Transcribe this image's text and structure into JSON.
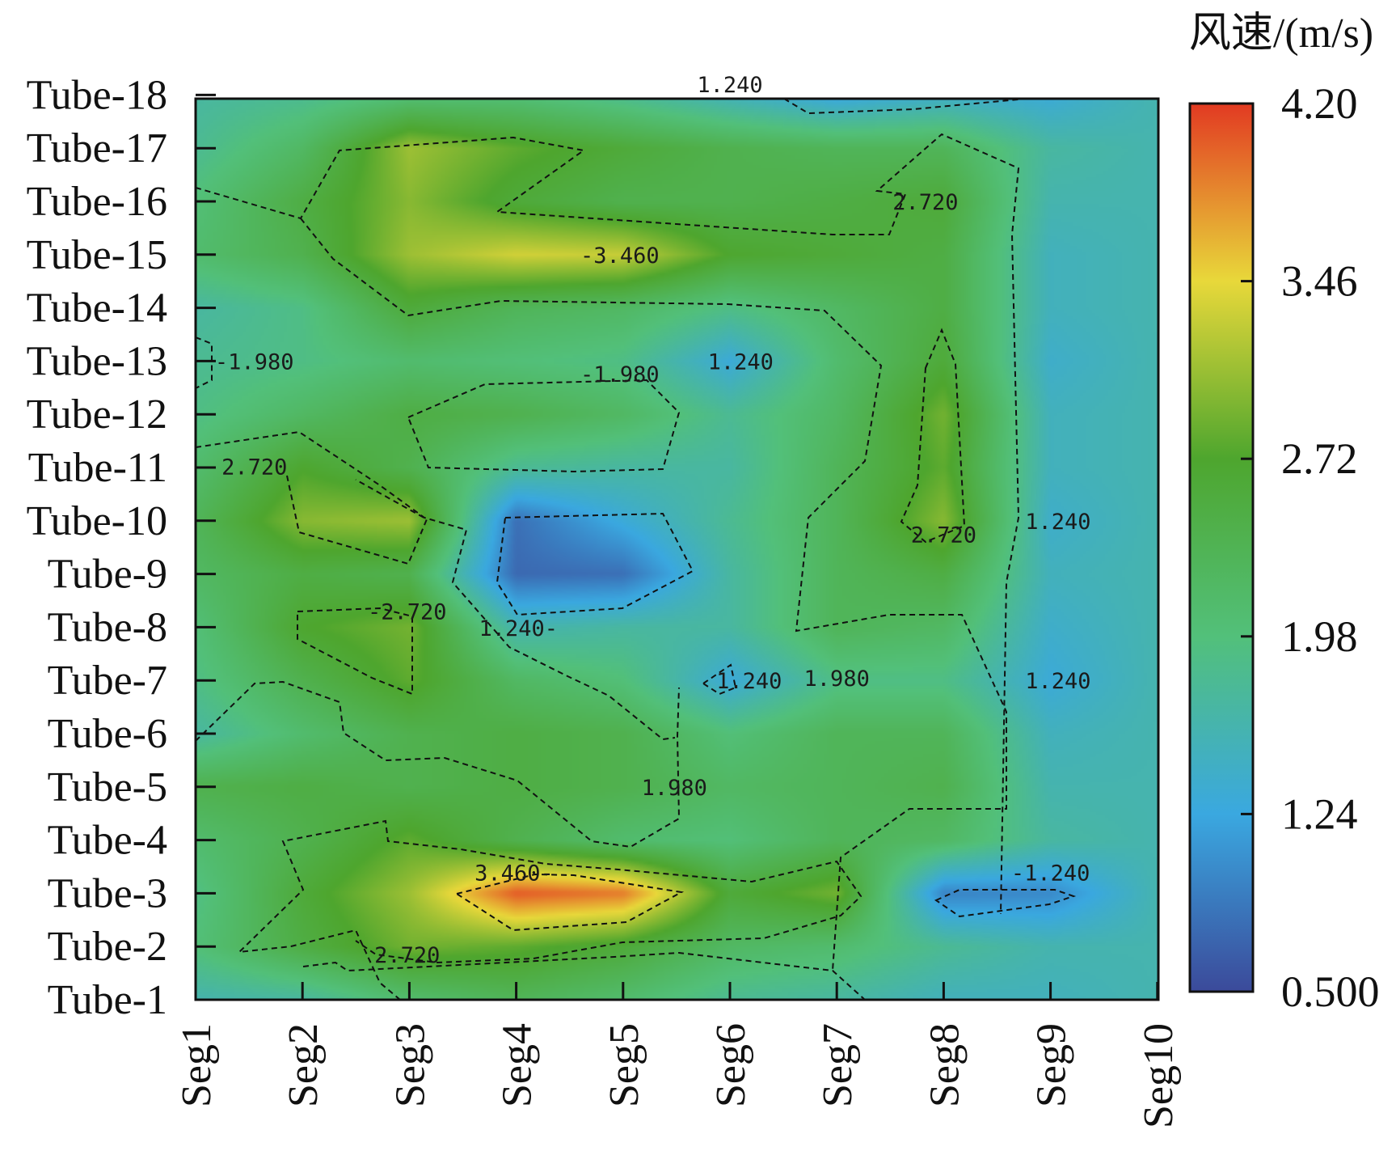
{
  "chart_data": {
    "type": "heatmap",
    "unit_label": "风速/(m/s)",
    "x_categories": [
      "Seg1",
      "Seg2",
      "Seg3",
      "Seg4",
      "Seg5",
      "Seg6",
      "Seg7",
      "Seg8",
      "Seg9",
      "Seg10"
    ],
    "y_categories": [
      "Tube-1",
      "Tube-2",
      "Tube-3",
      "Tube-4",
      "Tube-5",
      "Tube-6",
      "Tube-7",
      "Tube-8",
      "Tube-9",
      "Tube-10",
      "Tube-11",
      "Tube-12",
      "Tube-13",
      "Tube-14",
      "Tube-15",
      "Tube-16",
      "Tube-17",
      "Tube-18"
    ],
    "colorbar": {
      "min": 0.5,
      "max": 4.2,
      "ticks": [
        "0.500",
        "1.24",
        "1.98",
        "2.72",
        "3.46",
        "4.20"
      ],
      "colors": [
        "#3b4a9a",
        "#3aa8e0",
        "#52c07a",
        "#4ea62e",
        "#e8d83a",
        "#e23a22"
      ]
    },
    "values": [
      [
        1.6,
        1.7,
        2.1,
        2.3,
        2.1,
        1.8,
        1.7,
        1.5,
        1.5,
        1.6
      ],
      [
        2.0,
        2.5,
        2.9,
        2.8,
        2.6,
        2.2,
        2.1,
        1.8,
        1.6,
        1.6
      ],
      [
        1.9,
        2.6,
        3.1,
        4.05,
        3.9,
        2.6,
        2.9,
        0.95,
        1.0,
        1.6
      ],
      [
        2.1,
        2.4,
        2.8,
        2.4,
        2.1,
        2.0,
        2.3,
        2.2,
        1.7,
        1.6
      ],
      [
        2.4,
        2.5,
        2.4,
        2.5,
        2.4,
        2.2,
        2.3,
        2.4,
        1.6,
        1.6
      ],
      [
        1.7,
        2.1,
        2.4,
        2.5,
        2.4,
        2.0,
        2.3,
        2.3,
        1.5,
        1.6
      ],
      [
        1.9,
        2.4,
        2.8,
        2.2,
        2.0,
        1.3,
        1.9,
        1.9,
        1.3,
        1.6
      ],
      [
        2.0,
        2.7,
        2.9,
        1.6,
        1.7,
        1.7,
        2.3,
        2.2,
        1.4,
        1.6
      ],
      [
        2.2,
        2.5,
        2.4,
        0.75,
        0.8,
        1.7,
        2.3,
        2.5,
        1.5,
        1.6
      ],
      [
        2.3,
        3.0,
        3.1,
        0.8,
        1.3,
        1.8,
        2.3,
        3.0,
        1.4,
        1.6
      ],
      [
        2.1,
        2.7,
        2.4,
        1.8,
        1.7,
        1.7,
        2.3,
        2.8,
        1.5,
        1.6
      ],
      [
        1.9,
        2.2,
        2.5,
        2.4,
        2.2,
        1.8,
        2.2,
        2.9,
        1.5,
        1.6
      ],
      [
        1.8,
        1.9,
        2.1,
        2.0,
        1.9,
        1.3,
        2.1,
        2.6,
        1.4,
        1.6
      ],
      [
        1.7,
        1.9,
        2.6,
        2.3,
        2.2,
        1.9,
        2.2,
        2.5,
        1.5,
        1.6
      ],
      [
        2.1,
        2.4,
        3.1,
        3.35,
        3.3,
        2.7,
        2.6,
        2.5,
        1.5,
        1.6
      ],
      [
        2.0,
        2.5,
        3.0,
        2.6,
        2.4,
        2.4,
        2.5,
        2.6,
        1.6,
        1.6
      ],
      [
        1.8,
        2.2,
        3.1,
        2.8,
        2.6,
        2.4,
        2.3,
        2.3,
        1.7,
        1.6
      ],
      [
        1.7,
        1.8,
        2.0,
        2.0,
        1.8,
        1.5,
        1.2,
        1.4,
        1.3,
        1.6
      ]
    ],
    "contour_labels": [
      {
        "text": "1.240",
        "x": 6.0,
        "y": 18.2
      },
      {
        "text": "2.720",
        "x": 7.83,
        "y": 16.0
      },
      {
        "text": "-3.460",
        "x": 4.97,
        "y": 15.0
      },
      {
        "text": "-1.980",
        "x": 1.55,
        "y": 13.0
      },
      {
        "text": "1.240",
        "x": 6.1,
        "y": 13.0
      },
      {
        "text": "-1.980",
        "x": 4.97,
        "y": 12.76
      },
      {
        "text": "2.720",
        "x": 1.55,
        "y": 11.02
      },
      {
        "text": "1.240",
        "x": 9.07,
        "y": 10.0
      },
      {
        "text": "2.720",
        "x": 8.0,
        "y": 9.75
      },
      {
        "text": "-2.720",
        "x": 2.98,
        "y": 8.3
      },
      {
        "text": "1.240-",
        "x": 4.02,
        "y": 7.99
      },
      {
        "text": "1.240",
        "x": 6.18,
        "y": 7.0
      },
      {
        "text": "1.980",
        "x": 7.0,
        "y": 7.05
      },
      {
        "text": "1.240",
        "x": 9.07,
        "y": 7.0
      },
      {
        "text": "1.980",
        "x": 5.48,
        "y": 5.0
      },
      {
        "text": "3.460-",
        "x": 3.98,
        "y": 3.39
      },
      {
        "text": "-1.240",
        "x": 9.0,
        "y": 3.39
      },
      {
        "text": "2.720",
        "x": 2.98,
        "y": 1.85
      }
    ]
  }
}
